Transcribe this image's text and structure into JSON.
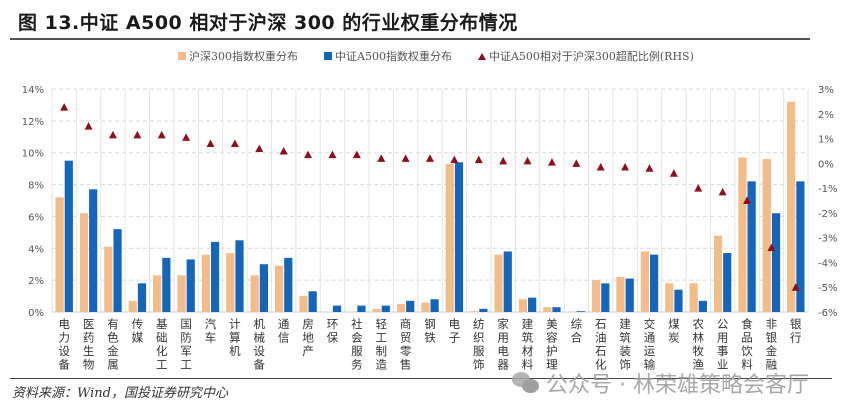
{
  "header": {
    "title": "图 13.中证 A500 相对于沪深 300 的行业权重分布情况"
  },
  "legend": {
    "items": [
      {
        "label": "沪深300指数权重分布",
        "color": "#f2bd8a",
        "shape": "square"
      },
      {
        "label": "中证A500指数权重分布",
        "color": "#1565b8",
        "shape": "square"
      },
      {
        "label": "中证A500相对于沪深300超配比例(RHS)",
        "color": "#8b0f1f",
        "shape": "triangle"
      }
    ]
  },
  "footer": {
    "source": "资料来源：Wind，国投证券研究中心",
    "watermark": "公众号 · 林荣雄策略会客厅",
    "watermark_icon": "wechat-icon"
  },
  "chart_data": {
    "type": "bar",
    "title": "图 13.中证 A500 相对于沪深 300 的行业权重分布情况",
    "xlabel": "",
    "ylabel": "",
    "ylabel_right": "",
    "ylim": [
      0,
      14
    ],
    "ylim_right": [
      -6,
      3
    ],
    "yticks": [
      "0%",
      "2%",
      "4%",
      "6%",
      "8%",
      "10%",
      "12%",
      "14%"
    ],
    "yticks_right": [
      "-6%",
      "-5%",
      "-4%",
      "-3%",
      "-2%",
      "-1%",
      "0%",
      "1%",
      "2%",
      "3%"
    ],
    "grid": true,
    "legend_position": "top",
    "categories": [
      "电力设备",
      "医药生物",
      "有色金属",
      "传媒",
      "基础化工",
      "国防军工",
      "汽车",
      "计算机",
      "机械设备",
      "通信",
      "房地产",
      "环保",
      "社会服务",
      "轻工制造",
      "商贸零售",
      "钢铁",
      "电子",
      "纺织服饰",
      "家用电器",
      "建筑材料",
      "美容护理",
      "综合",
      "石油石化",
      "建筑装饰",
      "交通运输",
      "煤炭",
      "农林牧渔",
      "公用事业",
      "食品饮料",
      "非银金融",
      "银行"
    ],
    "series": [
      {
        "name": "沪深300指数权重分布",
        "type": "bar",
        "axis": "left",
        "color": "#f2bd8a",
        "values": [
          7.2,
          6.2,
          4.1,
          0.7,
          2.3,
          2.3,
          3.6,
          3.7,
          2.3,
          2.9,
          1.0,
          0.0,
          0.0,
          0.2,
          0.5,
          0.6,
          9.3,
          0.05,
          3.6,
          0.8,
          0.3,
          0.0,
          2.0,
          2.2,
          3.8,
          1.8,
          1.8,
          4.8,
          9.7,
          9.6,
          13.2
        ]
      },
      {
        "name": "中证A500指数权重分布",
        "type": "bar",
        "axis": "left",
        "color": "#1565b8",
        "values": [
          9.5,
          7.7,
          5.2,
          1.8,
          3.4,
          3.3,
          4.4,
          4.5,
          3.0,
          3.4,
          1.3,
          0.4,
          0.4,
          0.4,
          0.7,
          0.8,
          9.4,
          0.2,
          3.8,
          0.9,
          0.3,
          0.05,
          1.8,
          2.1,
          3.6,
          1.4,
          0.7,
          3.7,
          8.2,
          6.2,
          8.2
        ]
      },
      {
        "name": "中证A500相对于沪深300超配比例(RHS)",
        "type": "scatter",
        "marker": "triangle",
        "axis": "right",
        "color": "#8b0f1f",
        "values": [
          2.27,
          1.5,
          1.15,
          1.15,
          1.15,
          1.05,
          0.8,
          0.8,
          0.6,
          0.5,
          0.35,
          0.35,
          0.35,
          0.2,
          0.2,
          0.2,
          0.15,
          0.15,
          0.1,
          0.1,
          0.05,
          0.0,
          -0.15,
          -0.15,
          -0.2,
          -0.4,
          -1.0,
          -1.15,
          -1.5,
          -3.4,
          -5.0
        ]
      }
    ]
  }
}
